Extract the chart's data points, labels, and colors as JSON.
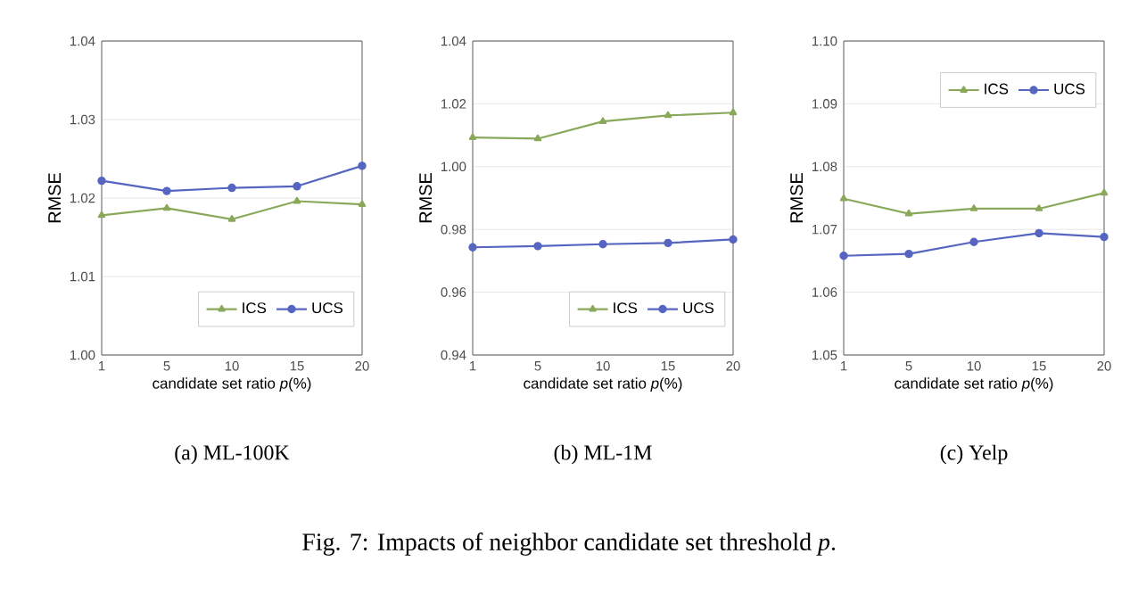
{
  "chart_data": [
    {
      "type": "line",
      "title": "(a) ML-100K",
      "xlabel": "candidate set ratio *p*(%)",
      "ylabel": "RMSE",
      "categories": [
        "1",
        "5",
        "10",
        "15",
        "20"
      ],
      "series": [
        {
          "name": "ICS",
          "color": "#8aa85a",
          "marker": "triangle",
          "values": [
            1.0178,
            1.0187,
            1.0173,
            1.0196,
            1.0192
          ]
        },
        {
          "name": "UCS",
          "color": "#5565c0",
          "marker": "circle",
          "values": [
            1.0222,
            1.0209,
            1.0213,
            1.0215,
            1.0241
          ]
        }
      ],
      "ylim": [
        1.0,
        1.04
      ],
      "yticks": [
        {
          "value": 1.0,
          "label": "1.00"
        },
        {
          "value": 1.01,
          "label": "1.01"
        },
        {
          "value": 1.02,
          "label": "1.02"
        },
        {
          "value": 1.03,
          "label": "1.03"
        },
        {
          "value": 1.04,
          "label": "1.04"
        }
      ],
      "grid": "y",
      "legend": "bottom right",
      "annotations": [
        "Fig. 7: Impacts of neighbor candidate set threshold *p*."
      ]
    },
    {
      "type": "line",
      "title": "(b) ML-1M",
      "xlabel": "candidate set ratio *p*(%)",
      "ylabel": "RMSE",
      "categories": [
        "1",
        "5",
        "10",
        "15",
        "20"
      ],
      "series": [
        {
          "name": "ICS",
          "color": "#8aa85a",
          "marker": "triangle",
          "values": [
            1.0093,
            1.0089,
            1.0144,
            1.0163,
            1.0172
          ]
        },
        {
          "name": "UCS",
          "color": "#5565c0",
          "marker": "circle",
          "values": [
            0.9743,
            0.9747,
            0.9753,
            0.9757,
            0.9768
          ]
        }
      ],
      "ylim": [
        0.94,
        1.04
      ],
      "yticks": [
        {
          "value": 0.94,
          "label": "0.94"
        },
        {
          "value": 0.96,
          "label": "0.96"
        },
        {
          "value": 0.98,
          "label": "0.98"
        },
        {
          "value": 1.0,
          "label": "1.00"
        },
        {
          "value": 1.02,
          "label": "1.02"
        },
        {
          "value": 1.04,
          "label": "1.04"
        }
      ],
      "grid": "y",
      "legend": "bottom right"
    },
    {
      "type": "line",
      "title": "(c) Yelp",
      "xlabel": "candidate set ratio *p*(%)",
      "ylabel": "RMSE",
      "categories": [
        "1",
        "5",
        "10",
        "15",
        "20"
      ],
      "series": [
        {
          "name": "ICS",
          "color": "#8aa85a",
          "marker": "triangle",
          "values": [
            1.0749,
            1.0725,
            1.0733,
            1.0733,
            1.0758
          ]
        },
        {
          "name": "UCS",
          "color": "#5565c0",
          "marker": "circle",
          "values": [
            1.0658,
            1.0661,
            1.068,
            1.0694,
            1.0688
          ]
        }
      ],
      "ylim": [
        1.05,
        1.1
      ],
      "yticks": [
        {
          "value": 1.05,
          "label": "1.05"
        },
        {
          "value": 1.06,
          "label": "1.06"
        },
        {
          "value": 1.07,
          "label": "1.07"
        },
        {
          "value": 1.08,
          "label": "1.08"
        },
        {
          "value": 1.09,
          "label": "1.09"
        },
        {
          "value": 1.1,
          "label": "1.10"
        }
      ],
      "grid": "y",
      "legend": "top right"
    }
  ]
}
